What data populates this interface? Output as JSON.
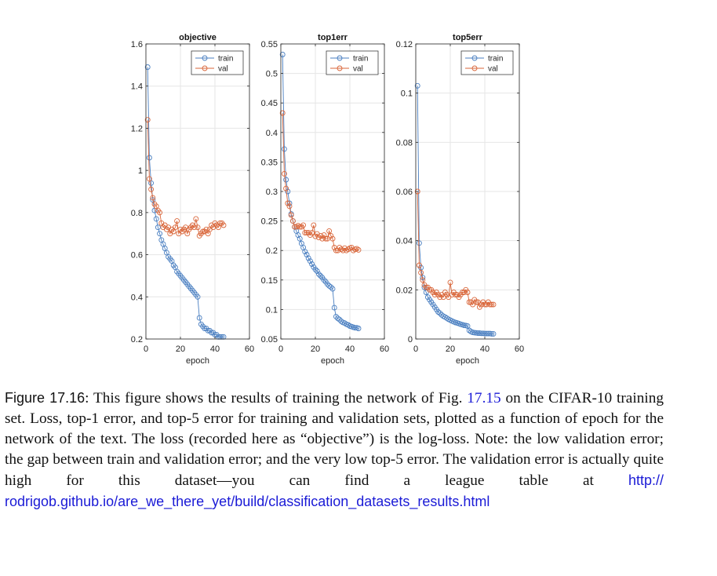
{
  "chart_data": [
    {
      "type": "line",
      "title": "objective",
      "xlabel": "epoch",
      "ylabel": "",
      "xlim": [
        0,
        60
      ],
      "ylim": [
        0.2,
        1.6
      ],
      "xticks": [
        0,
        20,
        40,
        60
      ],
      "yticks": [
        0.2,
        0.4,
        0.6,
        0.8,
        1,
        1.2,
        1.4,
        1.6
      ],
      "ytick_labels": [
        "0.2",
        "0.4",
        "0.6",
        "0.8",
        "1",
        "1.2",
        "1.4",
        "1.6"
      ],
      "grid": true,
      "legend_position": "top-right",
      "series": [
        {
          "name": "train",
          "color": "#4a7fc1",
          "x": [
            1,
            2,
            3,
            4,
            5,
            6,
            7,
            8,
            9,
            10,
            11,
            12,
            13,
            14,
            15,
            16,
            17,
            18,
            19,
            20,
            21,
            22,
            23,
            24,
            25,
            26,
            27,
            28,
            29,
            30,
            31,
            32,
            33,
            34,
            35,
            36,
            37,
            38,
            39,
            40,
            41,
            42,
            43,
            44,
            45
          ],
          "values": [
            1.49,
            1.06,
            0.94,
            0.86,
            0.81,
            0.77,
            0.73,
            0.7,
            0.67,
            0.65,
            0.63,
            0.61,
            0.59,
            0.58,
            0.57,
            0.55,
            0.54,
            0.52,
            0.51,
            0.5,
            0.49,
            0.48,
            0.47,
            0.46,
            0.45,
            0.44,
            0.43,
            0.42,
            0.41,
            0.4,
            0.3,
            0.27,
            0.26,
            0.25,
            0.25,
            0.24,
            0.24,
            0.23,
            0.23,
            0.22,
            0.22,
            0.21,
            0.21,
            0.21,
            0.21
          ]
        },
        {
          "name": "val",
          "color": "#d9663a",
          "x": [
            1,
            2,
            3,
            4,
            5,
            6,
            7,
            8,
            9,
            10,
            11,
            12,
            13,
            14,
            15,
            16,
            17,
            18,
            19,
            20,
            21,
            22,
            23,
            24,
            25,
            26,
            27,
            28,
            29,
            30,
            31,
            32,
            33,
            34,
            35,
            36,
            37,
            38,
            39,
            40,
            41,
            42,
            43,
            44,
            45
          ],
          "values": [
            1.24,
            0.96,
            0.91,
            0.87,
            0.84,
            0.83,
            0.81,
            0.8,
            0.75,
            0.73,
            0.74,
            0.72,
            0.73,
            0.7,
            0.72,
            0.71,
            0.73,
            0.76,
            0.7,
            0.72,
            0.71,
            0.72,
            0.73,
            0.7,
            0.72,
            0.73,
            0.74,
            0.73,
            0.77,
            0.73,
            0.69,
            0.7,
            0.71,
            0.71,
            0.72,
            0.7,
            0.72,
            0.74,
            0.73,
            0.75,
            0.74,
            0.73,
            0.75,
            0.75,
            0.74
          ]
        }
      ]
    },
    {
      "type": "line",
      "title": "top1err",
      "xlabel": "epoch",
      "ylabel": "",
      "xlim": [
        0,
        60
      ],
      "ylim": [
        0.05,
        0.55
      ],
      "xticks": [
        0,
        20,
        40,
        60
      ],
      "yticks": [
        0.05,
        0.1,
        0.15,
        0.2,
        0.25,
        0.3,
        0.35,
        0.4,
        0.45,
        0.5,
        0.55
      ],
      "ytick_labels": [
        "0.05",
        "0.1",
        "0.15",
        "0.2",
        "0.25",
        "0.3",
        "0.35",
        "0.4",
        "0.45",
        "0.5",
        "0.55"
      ],
      "grid": true,
      "legend_position": "top-right",
      "series": [
        {
          "name": "train",
          "color": "#4a7fc1",
          "x": [
            1,
            2,
            3,
            4,
            5,
            6,
            7,
            8,
            9,
            10,
            11,
            12,
            13,
            14,
            15,
            16,
            17,
            18,
            19,
            20,
            21,
            22,
            23,
            24,
            25,
            26,
            27,
            28,
            29,
            30,
            31,
            32,
            33,
            34,
            35,
            36,
            37,
            38,
            39,
            40,
            41,
            42,
            43,
            44,
            45
          ],
          "values": [
            0.532,
            0.372,
            0.32,
            0.3,
            0.28,
            0.262,
            0.25,
            0.24,
            0.233,
            0.226,
            0.22,
            0.212,
            0.205,
            0.198,
            0.193,
            0.187,
            0.182,
            0.177,
            0.172,
            0.168,
            0.165,
            0.16,
            0.157,
            0.154,
            0.15,
            0.147,
            0.143,
            0.14,
            0.138,
            0.135,
            0.103,
            0.088,
            0.085,
            0.083,
            0.08,
            0.078,
            0.077,
            0.075,
            0.074,
            0.072,
            0.071,
            0.07,
            0.069,
            0.069,
            0.068
          ]
        },
        {
          "name": "val",
          "color": "#d9663a",
          "x": [
            1,
            2,
            3,
            4,
            5,
            6,
            7,
            8,
            9,
            10,
            11,
            12,
            13,
            14,
            15,
            16,
            17,
            18,
            19,
            20,
            21,
            22,
            23,
            24,
            25,
            26,
            27,
            28,
            29,
            30,
            31,
            32,
            33,
            34,
            35,
            36,
            37,
            38,
            39,
            40,
            41,
            42,
            43,
            44,
            45
          ],
          "values": [
            0.433,
            0.33,
            0.305,
            0.28,
            0.275,
            0.26,
            0.25,
            0.24,
            0.24,
            0.242,
            0.24,
            0.24,
            0.243,
            0.23,
            0.23,
            0.23,
            0.226,
            0.23,
            0.243,
            0.224,
            0.228,
            0.222,
            0.225,
            0.22,
            0.226,
            0.22,
            0.22,
            0.233,
            0.225,
            0.22,
            0.205,
            0.2,
            0.2,
            0.205,
            0.202,
            0.2,
            0.204,
            0.2,
            0.202,
            0.204,
            0.205,
            0.2,
            0.202,
            0.203,
            0.201
          ]
        }
      ]
    },
    {
      "type": "line",
      "title": "top5err",
      "xlabel": "epoch",
      "ylabel": "",
      "xlim": [
        0,
        60
      ],
      "ylim": [
        0,
        0.12
      ],
      "xticks": [
        0,
        20,
        40,
        60
      ],
      "yticks": [
        0,
        0.02,
        0.04,
        0.06,
        0.08,
        0.1,
        0.12
      ],
      "ytick_labels": [
        "0",
        "0.02",
        "0.04",
        "0.06",
        "0.08",
        "0.1",
        "0.12"
      ],
      "grid": true,
      "legend_position": "top-right",
      "series": [
        {
          "name": "train",
          "color": "#4a7fc1",
          "x": [
            1,
            2,
            3,
            4,
            5,
            6,
            7,
            8,
            9,
            10,
            11,
            12,
            13,
            14,
            15,
            16,
            17,
            18,
            19,
            20,
            21,
            22,
            23,
            24,
            25,
            26,
            27,
            28,
            29,
            30,
            31,
            32,
            33,
            34,
            35,
            36,
            37,
            38,
            39,
            40,
            41,
            42,
            43,
            44,
            45
          ],
          "values": [
            0.103,
            0.039,
            0.029,
            0.025,
            0.021,
            0.019,
            0.017,
            0.016,
            0.015,
            0.014,
            0.013,
            0.012,
            0.011,
            0.0105,
            0.0098,
            0.0093,
            0.0089,
            0.0085,
            0.008,
            0.0077,
            0.0073,
            0.007,
            0.0067,
            0.0065,
            0.0063,
            0.006,
            0.0058,
            0.0056,
            0.0055,
            0.0053,
            0.0035,
            0.003,
            0.0027,
            0.0026,
            0.0025,
            0.0024,
            0.0024,
            0.0023,
            0.0023,
            0.0022,
            0.0022,
            0.0022,
            0.0022,
            0.0021,
            0.0021
          ]
        },
        {
          "name": "val",
          "color": "#d9663a",
          "x": [
            1,
            2,
            3,
            4,
            5,
            6,
            7,
            8,
            9,
            10,
            11,
            12,
            13,
            14,
            15,
            16,
            17,
            18,
            19,
            20,
            21,
            22,
            23,
            24,
            25,
            26,
            27,
            28,
            29,
            30,
            31,
            32,
            33,
            34,
            35,
            36,
            37,
            38,
            39,
            40,
            41,
            42,
            43,
            44,
            45
          ],
          "values": [
            0.06,
            0.03,
            0.027,
            0.024,
            0.022,
            0.021,
            0.021,
            0.02,
            0.02,
            0.019,
            0.018,
            0.019,
            0.018,
            0.017,
            0.018,
            0.017,
            0.019,
            0.018,
            0.017,
            0.023,
            0.018,
            0.019,
            0.018,
            0.018,
            0.017,
            0.018,
            0.019,
            0.019,
            0.02,
            0.019,
            0.015,
            0.015,
            0.014,
            0.016,
            0.015,
            0.015,
            0.013,
            0.014,
            0.015,
            0.014,
            0.014,
            0.015,
            0.014,
            0.014,
            0.014
          ]
        }
      ]
    }
  ],
  "caption": {
    "label": "Figure 17.16",
    "separator": ":",
    "text_1": " This figure shows the results of training the network of Fig. ",
    "ref": "17.15",
    "text_2": " on the CIFAR-10 training set. Loss, top-1 error, and top-5 error for training and validation sets, plotted as a function of epoch for the network of the text. The loss (recorded here as “objective”) is the log-loss. Note: the low validation error; the gap between train and validation error; and the very low top-5 error. The validation error is actually quite high for this dataset—you can find a league table at ",
    "link": "http://rodrigob.github.io/are_we_there_yet/build/classification_datasets_results.html"
  }
}
